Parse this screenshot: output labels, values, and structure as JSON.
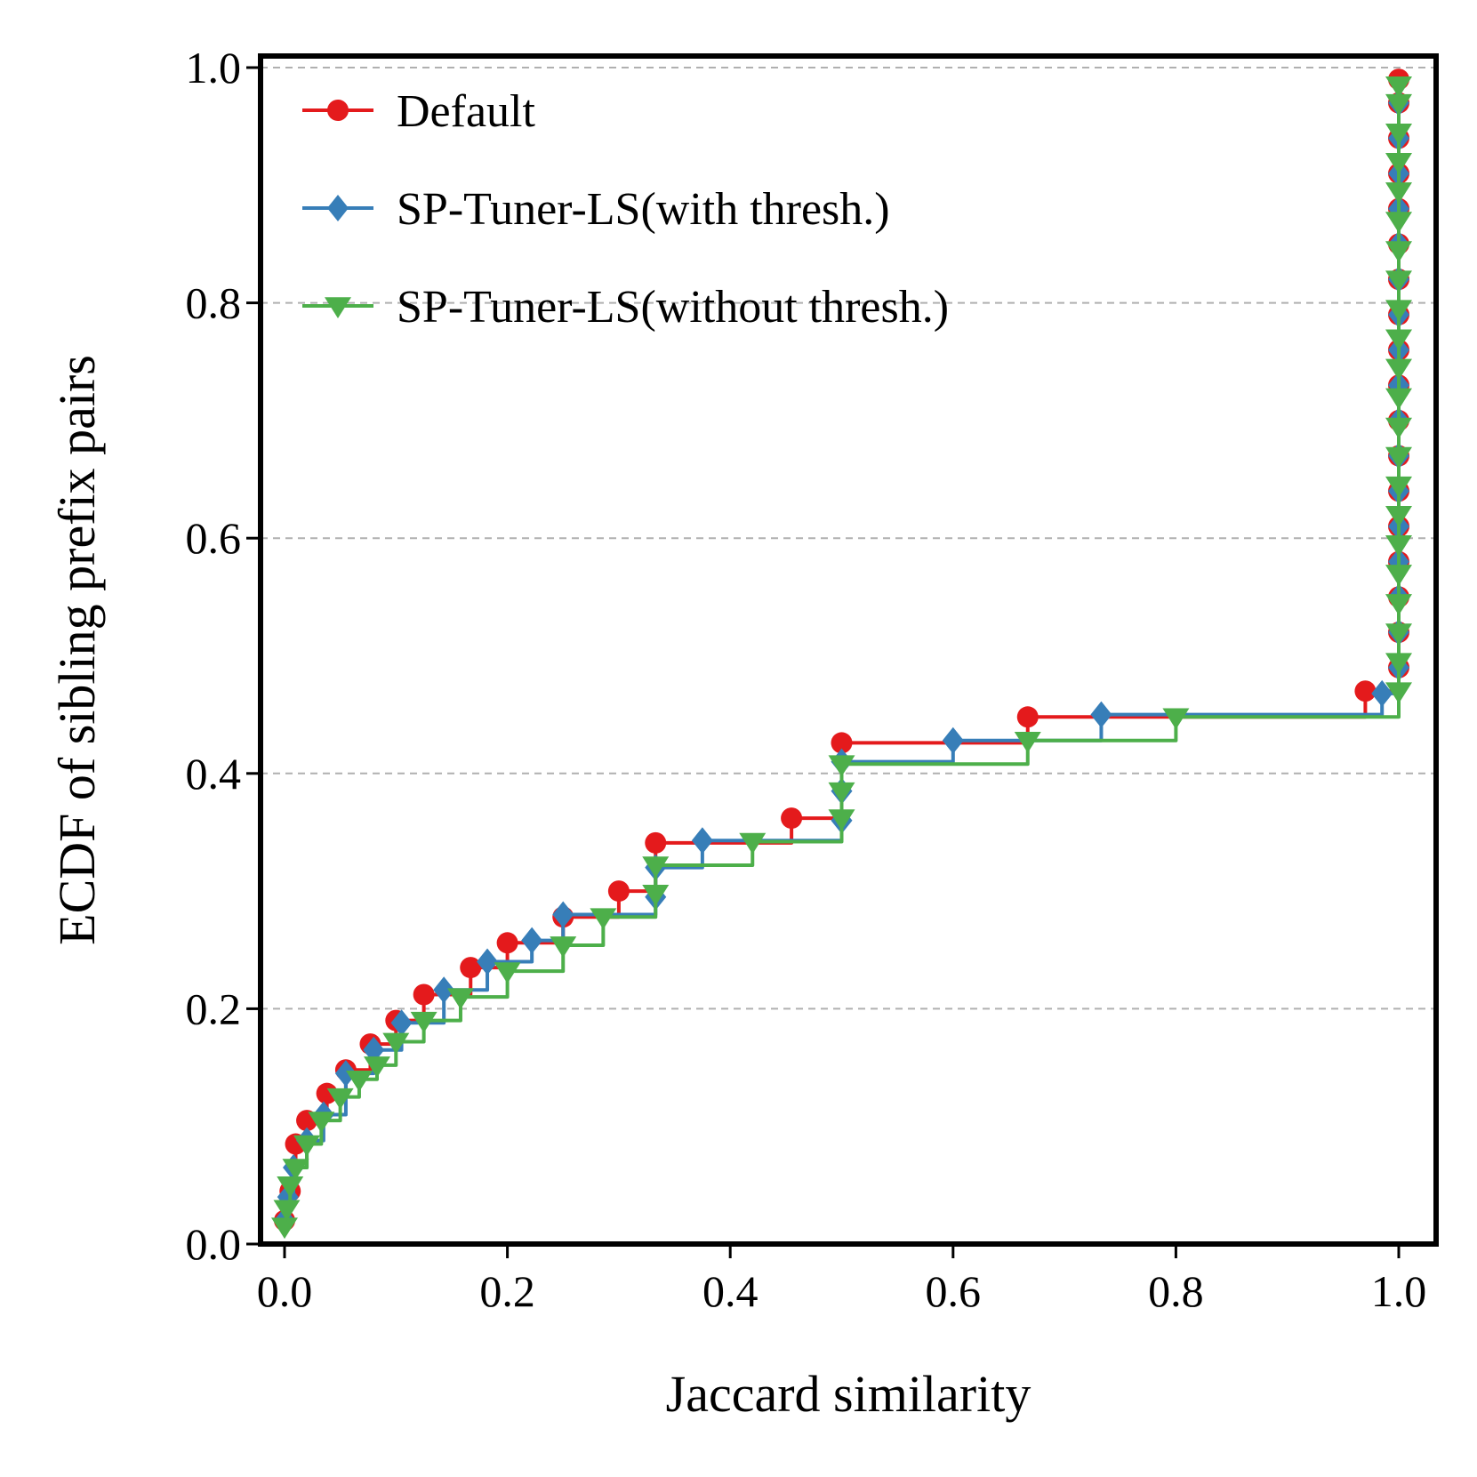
{
  "chart_data": {
    "type": "line",
    "title": "",
    "xlabel": "Jaccard similarity",
    "ylabel": "ECDF of sibling prefix pairs",
    "xlim": [
      -0.02,
      1.03
    ],
    "ylim": [
      0.0,
      1.0
    ],
    "xticks": [
      0.0,
      0.2,
      0.4,
      0.6,
      0.8,
      1.0
    ],
    "xtick_labels": [
      "0.0",
      "0.2",
      "0.4",
      "0.6",
      "0.8",
      "1.0"
    ],
    "yticks": [
      0.0,
      0.2,
      0.4,
      0.6,
      0.8,
      1.0
    ],
    "ytick_labels": [
      "0.0",
      "0.2",
      "0.4",
      "0.6",
      "0.8",
      "1.0"
    ],
    "grid": "y-dashed",
    "legend_position": "top-left",
    "series": [
      {
        "name": "Default",
        "color": "#e41a1c",
        "marker": "circle",
        "points": [
          [
            0.0,
            0.02
          ],
          [
            0.005,
            0.045
          ],
          [
            0.01,
            0.085
          ],
          [
            0.02,
            0.105
          ],
          [
            0.038,
            0.128
          ],
          [
            0.055,
            0.148
          ],
          [
            0.077,
            0.17
          ],
          [
            0.1,
            0.19
          ],
          [
            0.125,
            0.212
          ],
          [
            0.167,
            0.235
          ],
          [
            0.2,
            0.256
          ],
          [
            0.25,
            0.278
          ],
          [
            0.3,
            0.3
          ],
          [
            0.333,
            0.341
          ],
          [
            0.455,
            0.362
          ],
          [
            0.5,
            0.426
          ],
          [
            0.667,
            0.448
          ],
          [
            0.97,
            0.47
          ],
          [
            1.0,
            0.49
          ],
          [
            1.0,
            0.52
          ],
          [
            1.0,
            0.55
          ],
          [
            1.0,
            0.58
          ],
          [
            1.0,
            0.61
          ],
          [
            1.0,
            0.64
          ],
          [
            1.0,
            0.67
          ],
          [
            1.0,
            0.7
          ],
          [
            1.0,
            0.73
          ],
          [
            1.0,
            0.76
          ],
          [
            1.0,
            0.79
          ],
          [
            1.0,
            0.82
          ],
          [
            1.0,
            0.85
          ],
          [
            1.0,
            0.88
          ],
          [
            1.0,
            0.91
          ],
          [
            1.0,
            0.94
          ],
          [
            1.0,
            0.97
          ],
          [
            1.0,
            0.99
          ]
        ]
      },
      {
        "name": "SP-Tuner-LS(with thresh.)",
        "color": "#377eb8",
        "marker": "diamond",
        "points": [
          [
            0.0,
            0.02
          ],
          [
            0.003,
            0.04
          ],
          [
            0.008,
            0.065
          ],
          [
            0.02,
            0.088
          ],
          [
            0.035,
            0.11
          ],
          [
            0.055,
            0.145
          ],
          [
            0.08,
            0.165
          ],
          [
            0.105,
            0.188
          ],
          [
            0.143,
            0.216
          ],
          [
            0.182,
            0.24
          ],
          [
            0.222,
            0.258
          ],
          [
            0.25,
            0.28
          ],
          [
            0.333,
            0.295
          ],
          [
            0.333,
            0.32
          ],
          [
            0.375,
            0.343
          ],
          [
            0.5,
            0.36
          ],
          [
            0.5,
            0.385
          ],
          [
            0.5,
            0.41
          ],
          [
            0.6,
            0.428
          ],
          [
            0.733,
            0.45
          ],
          [
            0.985,
            0.468
          ],
          [
            1.0,
            0.49
          ],
          [
            1.0,
            0.52
          ],
          [
            1.0,
            0.55
          ],
          [
            1.0,
            0.58
          ],
          [
            1.0,
            0.61
          ],
          [
            1.0,
            0.64
          ],
          [
            1.0,
            0.67
          ],
          [
            1.0,
            0.7
          ],
          [
            1.0,
            0.73
          ],
          [
            1.0,
            0.76
          ],
          [
            1.0,
            0.79
          ],
          [
            1.0,
            0.82
          ],
          [
            1.0,
            0.85
          ],
          [
            1.0,
            0.88
          ],
          [
            1.0,
            0.91
          ],
          [
            1.0,
            0.94
          ],
          [
            1.0,
            0.97
          ]
        ]
      },
      {
        "name": "SP-Tuner-LS(without thresh.)",
        "color": "#4daf4a",
        "marker": "triangle-down",
        "points": [
          [
            0.0,
            0.015
          ],
          [
            0.002,
            0.03
          ],
          [
            0.005,
            0.05
          ],
          [
            0.01,
            0.065
          ],
          [
            0.02,
            0.085
          ],
          [
            0.033,
            0.105
          ],
          [
            0.05,
            0.125
          ],
          [
            0.067,
            0.14
          ],
          [
            0.083,
            0.152
          ],
          [
            0.1,
            0.172
          ],
          [
            0.125,
            0.19
          ],
          [
            0.158,
            0.21
          ],
          [
            0.2,
            0.232
          ],
          [
            0.25,
            0.254
          ],
          [
            0.286,
            0.278
          ],
          [
            0.333,
            0.298
          ],
          [
            0.333,
            0.322
          ],
          [
            0.42,
            0.342
          ],
          [
            0.5,
            0.362
          ],
          [
            0.5,
            0.385
          ],
          [
            0.5,
            0.408
          ],
          [
            0.667,
            0.428
          ],
          [
            0.8,
            0.448
          ],
          [
            1.0,
            0.47
          ],
          [
            1.0,
            0.495
          ],
          [
            1.0,
            0.52
          ],
          [
            1.0,
            0.545
          ],
          [
            1.0,
            0.57
          ],
          [
            1.0,
            0.595
          ],
          [
            1.0,
            0.62
          ],
          [
            1.0,
            0.645
          ],
          [
            1.0,
            0.67
          ],
          [
            1.0,
            0.695
          ],
          [
            1.0,
            0.72
          ],
          [
            1.0,
            0.745
          ],
          [
            1.0,
            0.77
          ],
          [
            1.0,
            0.795
          ],
          [
            1.0,
            0.82
          ],
          [
            1.0,
            0.845
          ],
          [
            1.0,
            0.87
          ],
          [
            1.0,
            0.895
          ],
          [
            1.0,
            0.92
          ],
          [
            1.0,
            0.945
          ],
          [
            1.0,
            0.97
          ],
          [
            1.0,
            0.985
          ]
        ]
      }
    ]
  }
}
